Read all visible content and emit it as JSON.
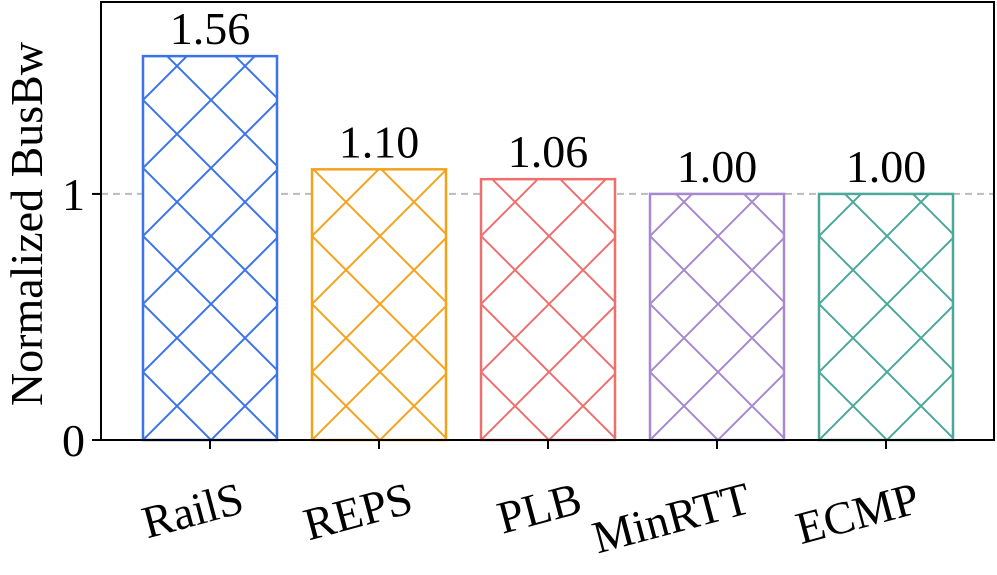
{
  "chart_data": {
    "type": "bar",
    "title": "",
    "xlabel": "",
    "ylabel": "Normalized BusBw",
    "categories": [
      "RailS",
      "REPS",
      "PLB",
      "MinRTT",
      "ECMP"
    ],
    "values": [
      1.56,
      1.1,
      1.06,
      1.0,
      1.0
    ],
    "value_labels": [
      "1.56",
      "1.10",
      "1.06",
      "1.00",
      "1.00"
    ],
    "colors": [
      "#3b74e9",
      "#f5a21b",
      "#ef6f6f",
      "#a689d1",
      "#4ba89b"
    ],
    "ylim": [
      0,
      1.78
    ],
    "yticks": [
      0,
      1
    ],
    "ytick_labels": [
      "0",
      "1"
    ],
    "reference_line": {
      "y": 1,
      "style": "dashed",
      "color": "#bbbbbb"
    },
    "hatch": "crosshatch-diagonal",
    "grid": false,
    "legend": "none"
  }
}
